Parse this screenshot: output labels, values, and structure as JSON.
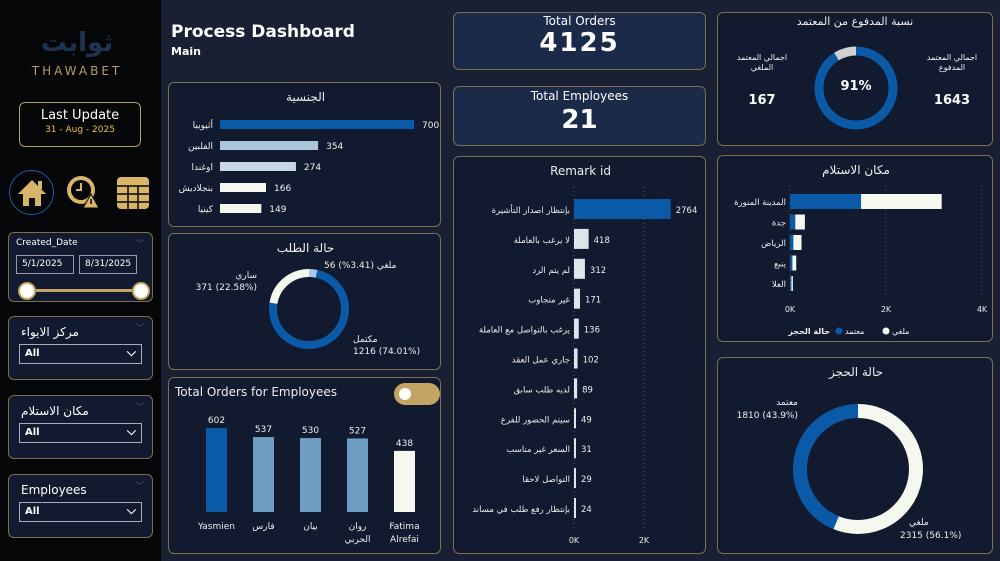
{
  "brand": {
    "logo_text": "THAWABET",
    "logo_arabic": "ثوابت"
  },
  "last_update": {
    "label": "Last Update",
    "date": "31 - Aug - 2025"
  },
  "nav": [
    {
      "icon": "home-icon"
    },
    {
      "icon": "clock-alert-icon"
    },
    {
      "icon": "table-icon"
    }
  ],
  "date_slicer": {
    "label": "Created_Date",
    "start": "5/1/2025",
    "end": "8/31/2025"
  },
  "slicers": [
    {
      "label": "مركز الايواء",
      "value": "All"
    },
    {
      "label": "مكان الاستلام",
      "value": "All"
    },
    {
      "label": "Employees",
      "value": "All"
    }
  ],
  "header": {
    "title": "Process Dashboard",
    "subtitle": "Main"
  },
  "kpis": {
    "orders_label": "Total Orders",
    "orders_value": "4125",
    "employees_label": "Total Employees",
    "employees_value": "21"
  },
  "colors": {
    "blue": "#0a5aa8",
    "light": "#f4f8ee",
    "mid": "#7aa6c9",
    "gold": "#c4a464"
  },
  "paid_ratio": {
    "title": "نسبة المدفوع من المعتمد",
    "left_label": "اجمالي المعتمد الملغي",
    "left_value": "167",
    "right_label": "اجمالي المعتمد المدفوع",
    "right_value": "1643",
    "center": "91%",
    "percent": 91
  },
  "chart_data": [
    {
      "id": "nationality",
      "type": "bar",
      "orientation": "horizontal",
      "title": "الجنسية",
      "categories": [
        "أثيوبيا",
        "الفلبين",
        "اوغندا",
        "بنجلاديش",
        "كينيا"
      ],
      "values": [
        700,
        354,
        274,
        166,
        149
      ],
      "colors": [
        "#0a5aa8",
        "#a9c6dc",
        "#c7d7e6",
        "#f4f8ee",
        "#f4f8ee"
      ]
    },
    {
      "id": "order_status",
      "type": "pie",
      "title": "حالة الطلب",
      "slices": [
        {
          "name": "ملغي",
          "value": 56,
          "label": "56 ملغي (3.41%)",
          "color": "#a9c9ec"
        },
        {
          "name": "مكتمل",
          "value": 1216,
          "label": "1216 (74.01%)",
          "color": "#0a5aa8"
        },
        {
          "name": "ساري",
          "value": 371,
          "label": "371 (22.58%)",
          "color": "#f4f8ee"
        }
      ]
    },
    {
      "id": "employees",
      "type": "bar",
      "title": "Total Orders for Employees",
      "categories": [
        "Yasmien",
        "فارس",
        "بيان",
        "روان الحربي",
        "Fatima Alrefai"
      ],
      "values": [
        602,
        537,
        530,
        527,
        438
      ],
      "colors": [
        "#0a5aa8",
        "#6f9dc4",
        "#6f9dc4",
        "#6f9dc4",
        "#f4f8ee"
      ]
    },
    {
      "id": "remark",
      "type": "bar",
      "orientation": "horizontal",
      "title": "Remark id",
      "categories": [
        "بإنتظار اصدار التأشيرة",
        "لا يرغب بالعاملة",
        "لم يتم الرد",
        "غير متجاوب",
        "يرغب بالتواصل مع العاملة",
        "جاري عمل العقد",
        "لديه طلب سابق",
        "سيتم الحضور للفرع",
        "السعر غير مناسب",
        "التواصل لاحقا",
        "بإنتظار رفع طلب في مساند"
      ],
      "values": [
        2764,
        418,
        312,
        171,
        136,
        102,
        89,
        49,
        31,
        29,
        24
      ],
      "xticks": [
        "0K",
        "2K"
      ],
      "xlim": [
        0,
        3400
      ]
    },
    {
      "id": "pickup",
      "type": "bar",
      "orientation": "horizontal",
      "stacked": true,
      "title": "مكان الاستلام",
      "categories": [
        "المدينة المنورة",
        "جدة",
        "الرياض",
        "ينبع",
        "العلا"
      ],
      "series": [
        {
          "name": "معتمد",
          "values": [
            1480,
            110,
            70,
            50,
            30
          ],
          "color": "#0a5aa8"
        },
        {
          "name": "ملغي",
          "values": [
            1680,
            200,
            170,
            80,
            30
          ],
          "color": "#f4f8ee"
        }
      ],
      "xticks": [
        "0K",
        "2K",
        "4K"
      ],
      "xlim": [
        0,
        4000
      ],
      "legend_title": "حالة الحجز",
      "legend": "bottom"
    },
    {
      "id": "booking_status",
      "type": "pie",
      "title": "حالة الحجز",
      "slices": [
        {
          "name": "ملغي",
          "value": 2315,
          "label": "2315 (56.1%)",
          "color": "#f4f8ee"
        },
        {
          "name": "معتمد",
          "value": 1810,
          "label": "1810 (43.9%)",
          "color": "#0a5aa8"
        }
      ]
    }
  ]
}
